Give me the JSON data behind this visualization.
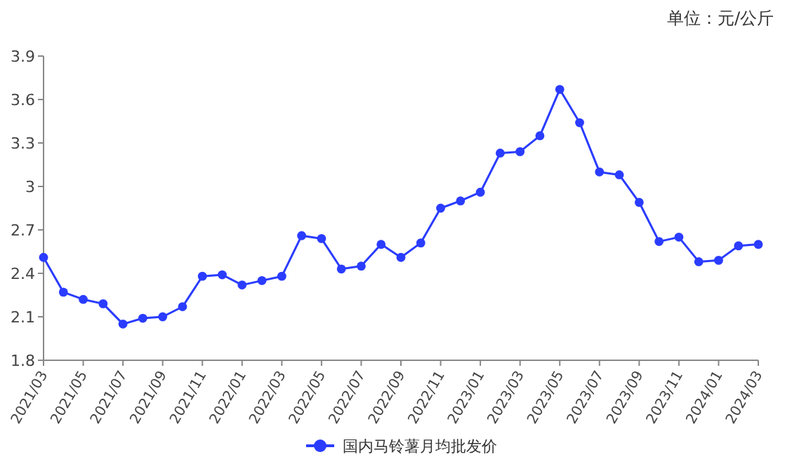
{
  "chart_data": {
    "type": "line",
    "annotations": [
      "单位：元/公斤"
    ],
    "categories": [
      "2021/03",
      null,
      "2021/05",
      null,
      "2021/07",
      null,
      "2021/09",
      null,
      "2021/11",
      null,
      "2022/01",
      null,
      "2022/03",
      null,
      "2022/05",
      null,
      "2022/07",
      null,
      "2022/09",
      null,
      "2022/11",
      null,
      "2023/01",
      null,
      "2023/03",
      null,
      "2023/05",
      null,
      "2023/07",
      null,
      "2023/09",
      null,
      "2023/11",
      null,
      "2024/01",
      null,
      "2024/03"
    ],
    "series": [
      {
        "name": "国内马铃薯月均批发价",
        "color": "#2a3cff",
        "values": [
          2.51,
          2.27,
          2.22,
          2.19,
          2.05,
          2.09,
          2.1,
          2.17,
          2.38,
          2.39,
          2.32,
          2.35,
          2.38,
          2.66,
          2.64,
          2.43,
          2.45,
          2.6,
          2.51,
          2.61,
          2.85,
          2.9,
          2.96,
          3.23,
          3.24,
          3.35,
          3.67,
          3.44,
          3.1,
          3.08,
          2.89,
          2.62,
          2.65,
          2.48,
          2.49,
          2.59,
          2.6
        ]
      }
    ],
    "ylim": [
      1.8,
      3.9
    ],
    "yticks": [
      1.8,
      2.1,
      2.4,
      2.7,
      3,
      3.3,
      3.6,
      3.9
    ],
    "marker": "circle",
    "line_style": "solid",
    "legend": "bottom",
    "grid": false
  }
}
